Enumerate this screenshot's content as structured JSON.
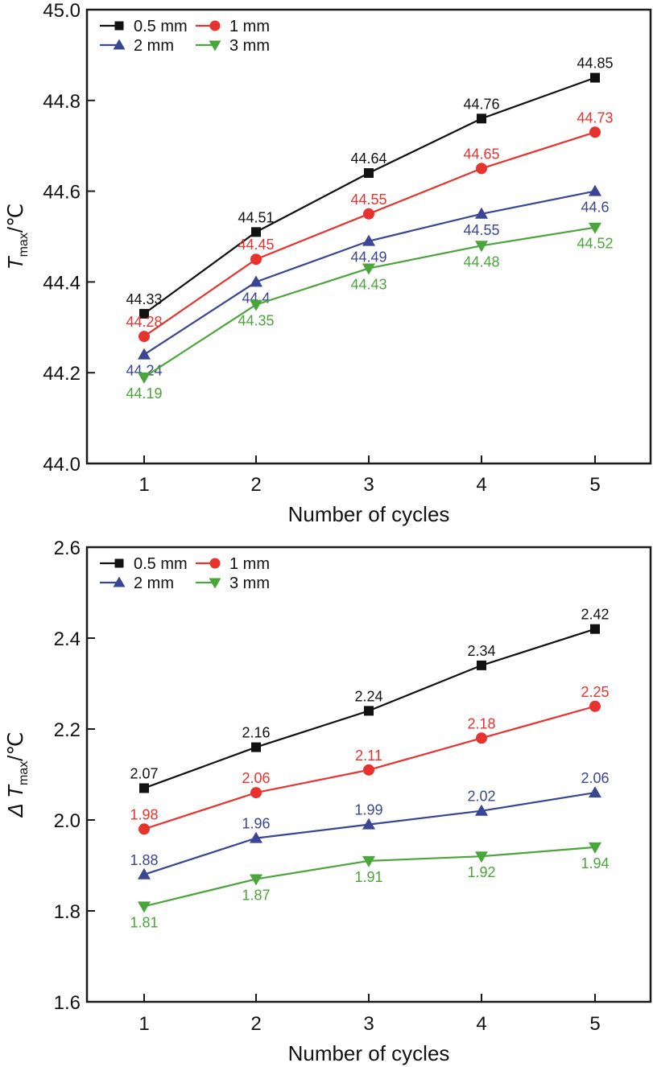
{
  "chart_data": [
    {
      "type": "line",
      "title": "",
      "xlabel": "Number of cycles",
      "ylabel": {
        "main": "T",
        "subscript": "max",
        "unit": "/℃"
      },
      "x": [
        1,
        2,
        3,
        4,
        5
      ],
      "xticks": [
        "1",
        "2",
        "3",
        "4",
        "5"
      ],
      "xlim": [
        0.5,
        5.5
      ],
      "ylim": [
        44.0,
        45.0
      ],
      "yticks": [
        "44.0",
        "44.2",
        "44.4",
        "44.6",
        "44.8",
        "45.0"
      ],
      "ytick_values": [
        44.0,
        44.2,
        44.4,
        44.6,
        44.8,
        45.0
      ],
      "grid": false,
      "legend_position": "top-left",
      "series": [
        {
          "name": "0.5 mm",
          "color": "#111111",
          "marker": "square",
          "values": [
            44.33,
            44.51,
            44.64,
            44.76,
            44.85
          ],
          "labels": [
            "44.33",
            "44.51",
            "44.64",
            "44.76",
            "44.85"
          ],
          "label_pos": "above"
        },
        {
          "name": "1 mm",
          "color": "#e8322e",
          "marker": "circle",
          "values": [
            44.28,
            44.45,
            44.55,
            44.65,
            44.73
          ],
          "labels": [
            "44.28",
            "44.45",
            "44.55",
            "44.65",
            "44.73"
          ],
          "label_pos": "above"
        },
        {
          "name": "2 mm",
          "color": "#3a4593",
          "marker": "triangle-up",
          "values": [
            44.24,
            44.4,
            44.49,
            44.55,
            44.6
          ],
          "labels": [
            "44.24",
            "44.4",
            "44.49",
            "44.55",
            "44.6"
          ],
          "label_pos": "below"
        },
        {
          "name": "3 mm",
          "color": "#4aa53a",
          "marker": "triangle-down",
          "values": [
            44.19,
            44.35,
            44.43,
            44.48,
            44.52
          ],
          "labels": [
            "44.19",
            "44.35",
            "44.43",
            "44.48",
            "44.52"
          ],
          "label_pos": "below"
        }
      ]
    },
    {
      "type": "line",
      "title": "",
      "xlabel": "Number of cycles",
      "ylabel": {
        "main": "Δ T",
        "subscript": "max",
        "unit": "/℃"
      },
      "x": [
        1,
        2,
        3,
        4,
        5
      ],
      "xticks": [
        "1",
        "2",
        "3",
        "4",
        "5"
      ],
      "xlim": [
        0.5,
        5.5
      ],
      "ylim": [
        1.6,
        2.6
      ],
      "yticks": [
        "1.6",
        "1.8",
        "2.0",
        "2.2",
        "2.4",
        "2.6"
      ],
      "ytick_values": [
        1.6,
        1.8,
        2.0,
        2.2,
        2.4,
        2.6
      ],
      "grid": false,
      "legend_position": "top-left",
      "series": [
        {
          "name": "0.5 mm",
          "color": "#111111",
          "marker": "square",
          "values": [
            2.07,
            2.16,
            2.24,
            2.34,
            2.42
          ],
          "labels": [
            "2.07",
            "2.16",
            "2.24",
            "2.34",
            "2.42"
          ],
          "label_pos": "above"
        },
        {
          "name": "1 mm",
          "color": "#e8322e",
          "marker": "circle",
          "values": [
            1.98,
            2.06,
            2.11,
            2.18,
            2.25
          ],
          "labels": [
            "1.98",
            "2.06",
            "2.11",
            "2.18",
            "2.25"
          ],
          "label_pos": "above"
        },
        {
          "name": "2 mm",
          "color": "#3a4593",
          "marker": "triangle-up",
          "values": [
            1.88,
            1.96,
            1.99,
            2.02,
            2.06
          ],
          "labels": [
            "1.88",
            "1.96",
            "1.99",
            "2.02",
            "2.06"
          ],
          "label_pos": "above"
        },
        {
          "name": "3 mm",
          "color": "#4aa53a",
          "marker": "triangle-down",
          "values": [
            1.81,
            1.87,
            1.91,
            1.92,
            1.94
          ],
          "labels": [
            "1.81",
            "1.87",
            "1.91",
            "1.92",
            "1.94"
          ],
          "label_pos": "below"
        }
      ]
    }
  ]
}
